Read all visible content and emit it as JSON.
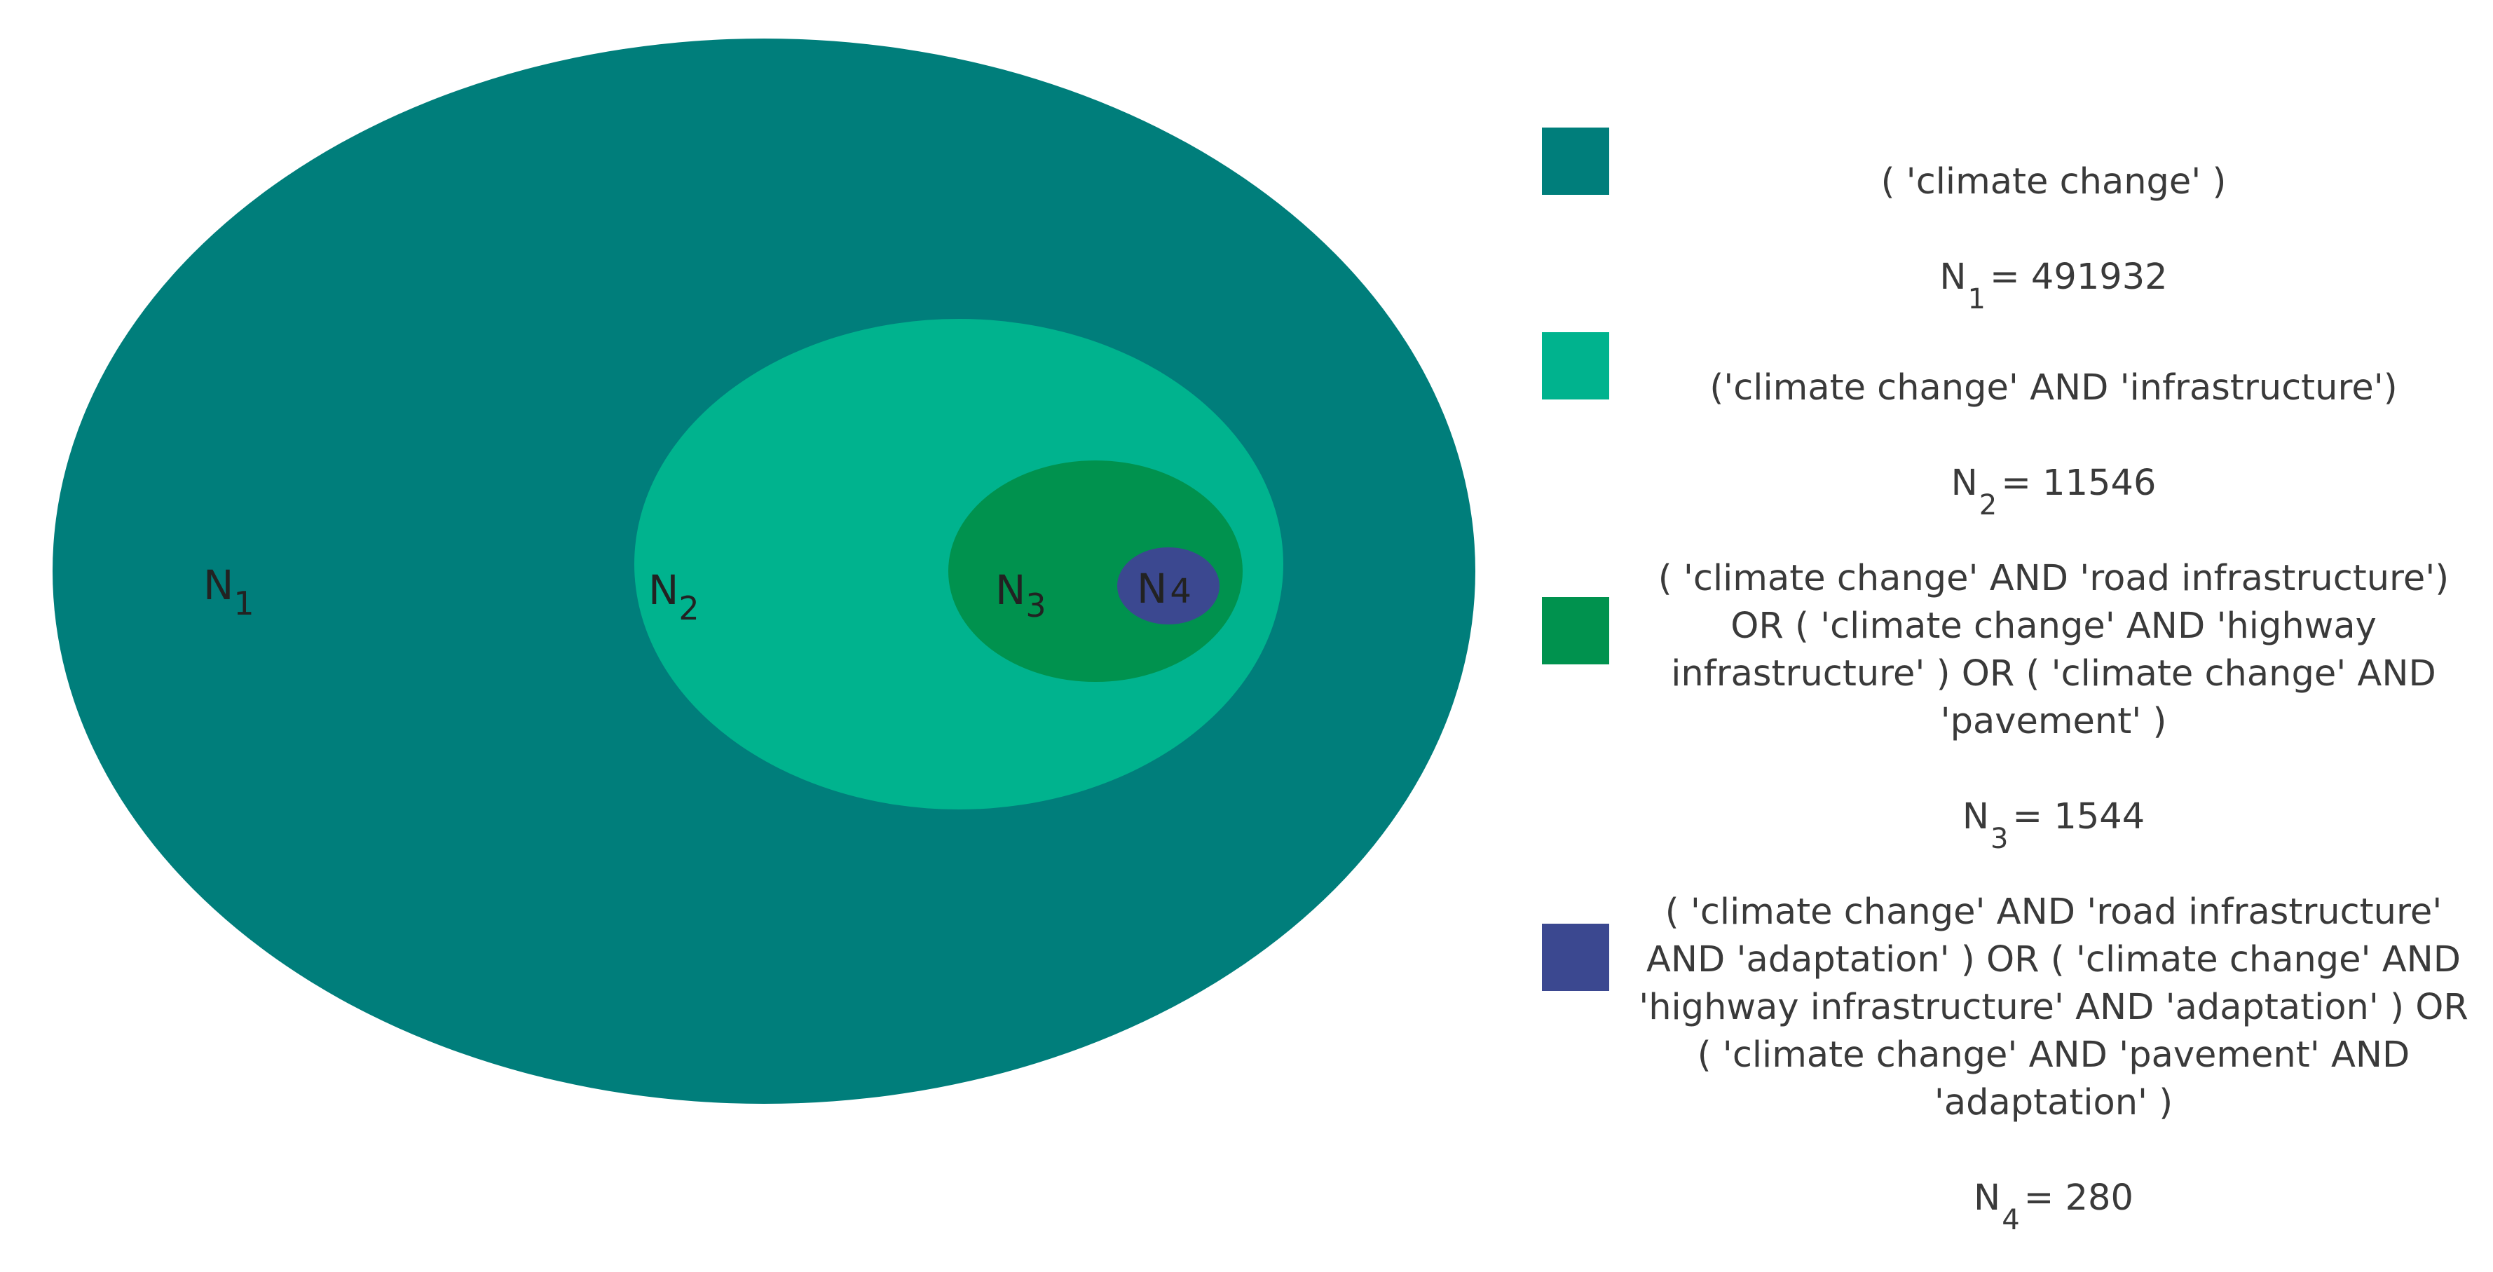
{
  "diagram": {
    "sets": [
      {
        "id": "N1",
        "symbol": "N",
        "subscript": "1",
        "color": "#007e7b"
      },
      {
        "id": "N2",
        "symbol": "N",
        "subscript": "2",
        "color": "#00b38e"
      },
      {
        "id": "N3",
        "symbol": "N",
        "subscript": "3",
        "color": "#00924e"
      },
      {
        "id": "N4",
        "symbol": "N",
        "subscript": "4",
        "color": "#3b4890"
      }
    ]
  },
  "legend": [
    {
      "color": "#007e7b",
      "query": "( 'climate  change' )",
      "symbol": "N",
      "subscript": "1",
      "count": "= 491932"
    },
    {
      "color": "#00b38e",
      "query": "('climate  change'  AND  'infrastructure')",
      "symbol": "N",
      "subscript": "2",
      "count": "= 11546"
    },
    {
      "color": "#00924e",
      "query": "( 'climate  change'  AND  'road  infrastructure')\nOR  ( 'climate  change'  AND  'highway\ninfrastructure' )  OR  ( 'climate  change'  AND\n'pavement'  )",
      "symbol": "N",
      "subscript": "3",
      "count": "= 1544"
    },
    {
      "color": "#3b4890",
      "query": "( 'climate  change'  AND  'road  infrastructure'\nAND  'adaptation' )  OR  ( 'climate  change'  AND\n'highway  infrastructure'  AND  'adaptation' )  OR\n( 'climate  change'  AND  'pavement'  AND\n'adaptation' )",
      "symbol": "N",
      "subscript": "4",
      "count": "= 280"
    }
  ]
}
